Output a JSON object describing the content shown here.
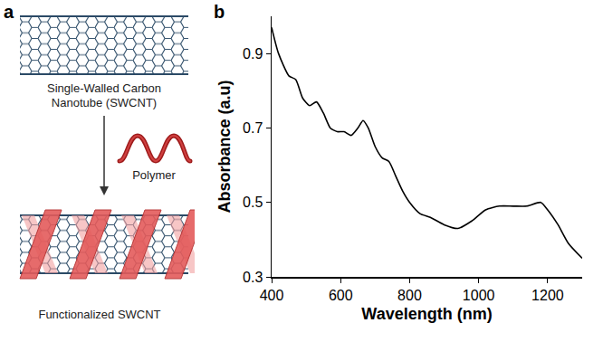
{
  "diagram": {
    "panel_label": "a",
    "top_label": "Single-Walled Carbon Nanotube (SWCNT)",
    "middle_label": "Polymer",
    "bottom_label": "Functionalized SWCNT"
  },
  "chart_data": {
    "type": "line",
    "panel_label": "b",
    "x_label": "Wavelength (nm)",
    "y_label": "Absorbance (a.u)",
    "x": [
      400,
      420,
      450,
      470,
      490,
      510,
      530,
      550,
      570,
      590,
      610,
      630,
      650,
      665,
      680,
      700,
      720,
      740,
      760,
      780,
      800,
      830,
      860,
      900,
      940,
      980,
      1020,
      1060,
      1100,
      1140,
      1180,
      1200,
      1230,
      1260,
      1300
    ],
    "series": [
      {
        "color": "#000000",
        "values": [
          0.97,
          0.9,
          0.84,
          0.83,
          0.78,
          0.76,
          0.77,
          0.74,
          0.7,
          0.69,
          0.69,
          0.68,
          0.7,
          0.72,
          0.7,
          0.65,
          0.62,
          0.61,
          0.57,
          0.53,
          0.5,
          0.47,
          0.46,
          0.44,
          0.43,
          0.45,
          0.48,
          0.49,
          0.49,
          0.49,
          0.5,
          0.48,
          0.44,
          0.39,
          0.35
        ]
      }
    ],
    "xlim": [
      400,
      1300
    ],
    "xticks": [
      400,
      600,
      800,
      1000,
      1200
    ],
    "ylim": [
      0.3,
      1.0
    ],
    "yticks": [
      0.3,
      0.5,
      0.7,
      0.9
    ],
    "grid": false
  }
}
